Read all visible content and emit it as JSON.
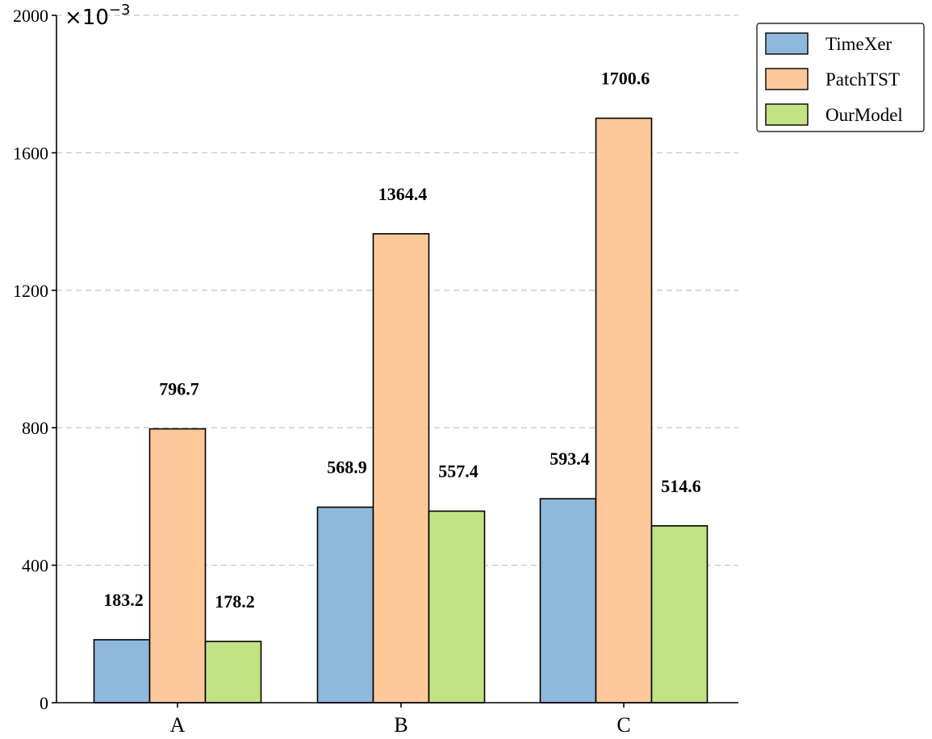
{
  "chart_data": {
    "type": "bar",
    "title": "",
    "xlabel": "",
    "ylabel": "",
    "y_multiplier": {
      "base": "×10",
      "exponent": "−3"
    },
    "categories": [
      "A",
      "B",
      "C"
    ],
    "ylim": [
      0,
      2000
    ],
    "yticks": [
      0,
      400,
      800,
      1200,
      1600,
      2000
    ],
    "grid": "horizontal-dashed",
    "legend_position": "top-right",
    "series": [
      {
        "name": "TimeXer",
        "color": "#8fb9dc",
        "values": [
          183.2,
          568.9,
          593.4
        ],
        "labels": [
          "183.2",
          "568.9",
          "593.4"
        ]
      },
      {
        "name": "PatchTST",
        "color": "#fdc99a",
        "values": [
          796.7,
          1364.4,
          1700.6
        ],
        "labels": [
          "796.7",
          "1364.4",
          "1700.6"
        ]
      },
      {
        "name": "OurModel",
        "color": "#c2e383",
        "values": [
          178.2,
          557.4,
          514.6
        ],
        "labels": [
          "178.2",
          "557.4",
          "514.6"
        ]
      }
    ]
  }
}
